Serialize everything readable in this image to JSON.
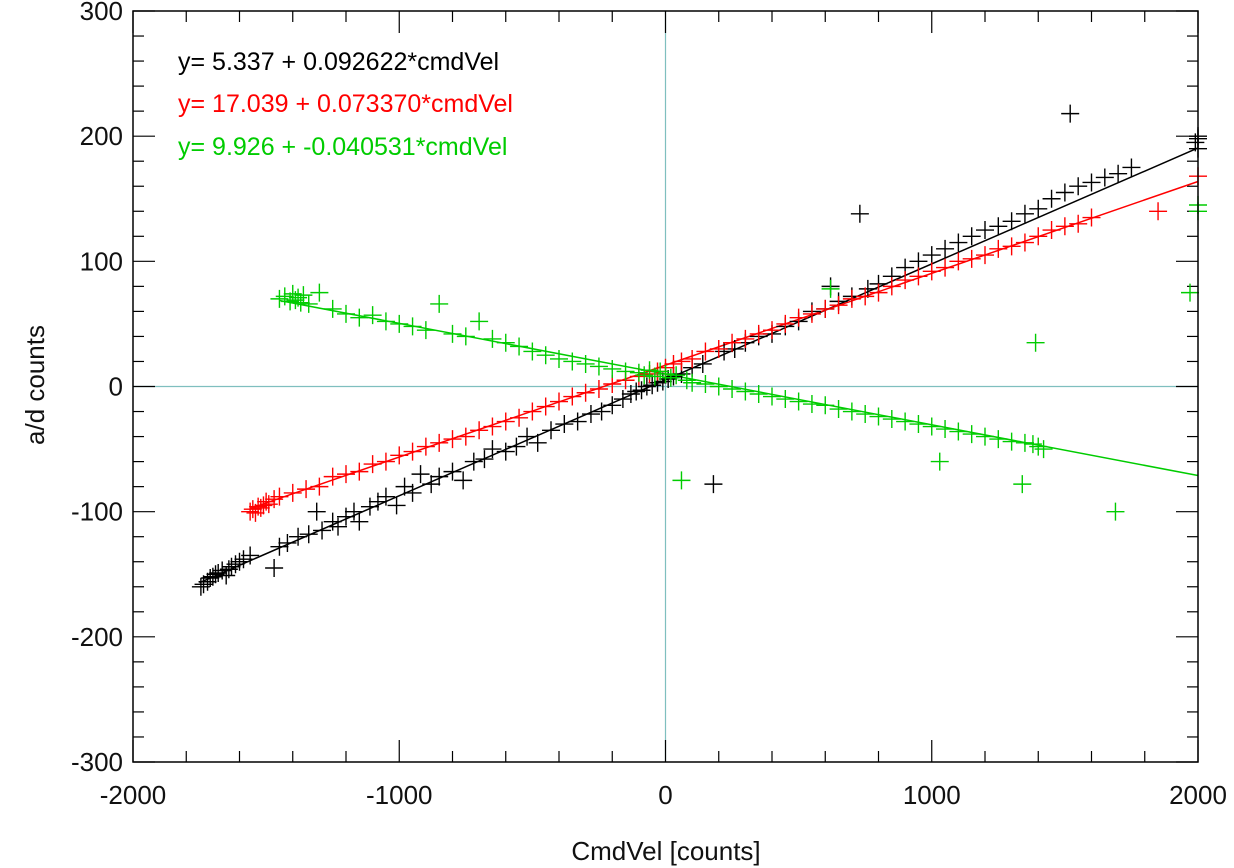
{
  "chart_data": {
    "type": "scatter",
    "title": "",
    "xlabel": "CmdVel [counts]",
    "ylabel": "a/d counts",
    "xlim": [
      -2000,
      2000
    ],
    "ylim": [
      -300,
      300
    ],
    "grid": false,
    "reference_lines": {
      "x": 0,
      "y": 0,
      "color": "#7fbfbf"
    },
    "x_ticks": [
      -2000,
      -1000,
      0,
      1000,
      2000
    ],
    "y_ticks": [
      -300,
      -200,
      -100,
      0,
      100,
      200,
      300
    ],
    "series": [
      {
        "color": "#000000",
        "equation": "y=  5.337 +  0.092622*cmdVel",
        "intercept": 5.337,
        "slope": 0.092622,
        "fit_range": [
          -1750,
          2000
        ],
        "points": [
          [
            -1745,
            -160
          ],
          [
            -1735,
            -158
          ],
          [
            -1720,
            -156
          ],
          [
            -1710,
            -153
          ],
          [
            -1700,
            -152
          ],
          [
            -1690,
            -150
          ],
          [
            -1680,
            -149
          ],
          [
            -1665,
            -147
          ],
          [
            -1650,
            -151
          ],
          [
            -1640,
            -146
          ],
          [
            -1630,
            -144
          ],
          [
            -1615,
            -142
          ],
          [
            -1600,
            -140
          ],
          [
            -1585,
            -138
          ],
          [
            -1560,
            -135
          ],
          [
            -1470,
            -145
          ],
          [
            -1450,
            -128
          ],
          [
            -1420,
            -125
          ],
          [
            -1380,
            -120
          ],
          [
            -1340,
            -118
          ],
          [
            -1310,
            -100
          ],
          [
            -1290,
            -115
          ],
          [
            -1250,
            -108
          ],
          [
            -1230,
            -112
          ],
          [
            -1200,
            -104
          ],
          [
            -1170,
            -100
          ],
          [
            -1150,
            -108
          ],
          [
            -1110,
            -96
          ],
          [
            -1080,
            -92
          ],
          [
            -1050,
            -88
          ],
          [
            -1010,
            -95
          ],
          [
            -980,
            -80
          ],
          [
            -950,
            -85
          ],
          [
            -920,
            -70
          ],
          [
            -880,
            -78
          ],
          [
            -850,
            -72
          ],
          [
            -800,
            -68
          ],
          [
            -760,
            -75
          ],
          [
            -720,
            -60
          ],
          [
            -680,
            -58
          ],
          [
            -650,
            -50
          ],
          [
            -600,
            -52
          ],
          [
            -560,
            -48
          ],
          [
            -520,
            -40
          ],
          [
            -480,
            -45
          ],
          [
            -430,
            -35
          ],
          [
            -380,
            -30
          ],
          [
            -330,
            -28
          ],
          [
            -280,
            -22
          ],
          [
            -240,
            -20
          ],
          [
            -200,
            -15
          ],
          [
            -160,
            -10
          ],
          [
            -130,
            -6
          ],
          [
            -110,
            -4
          ],
          [
            -90,
            -3
          ],
          [
            -70,
            0
          ],
          [
            -50,
            1
          ],
          [
            -30,
            3
          ],
          [
            -10,
            4
          ],
          [
            10,
            6
          ],
          [
            30,
            8
          ],
          [
            60,
            10
          ],
          [
            100,
            15
          ],
          [
            140,
            18
          ],
          [
            180,
            -78
          ],
          [
            220,
            28
          ],
          [
            260,
            30
          ],
          [
            300,
            35
          ],
          [
            350,
            40
          ],
          [
            400,
            42
          ],
          [
            450,
            48
          ],
          [
            500,
            52
          ],
          [
            550,
            60
          ],
          [
            600,
            62
          ],
          [
            620,
            80
          ],
          [
            650,
            68
          ],
          [
            700,
            72
          ],
          [
            730,
            138
          ],
          [
            760,
            78
          ],
          [
            800,
            82
          ],
          [
            850,
            88
          ],
          [
            900,
            95
          ],
          [
            950,
            100
          ],
          [
            1000,
            105
          ],
          [
            1050,
            110
          ],
          [
            1100,
            115
          ],
          [
            1150,
            120
          ],
          [
            1200,
            125
          ],
          [
            1250,
            128
          ],
          [
            1300,
            132
          ],
          [
            1350,
            138
          ],
          [
            1400,
            142
          ],
          [
            1450,
            150
          ],
          [
            1500,
            155
          ],
          [
            1520,
            218
          ],
          [
            1550,
            160
          ],
          [
            1600,
            163
          ],
          [
            1650,
            167
          ],
          [
            1700,
            170
          ],
          [
            1750,
            175
          ],
          [
            1990,
            195
          ],
          [
            2000,
            190
          ],
          [
            2000,
            200
          ],
          [
            2000,
            198
          ]
        ]
      },
      {
        "color": "#ff0000",
        "equation": "y= 17.039 +  0.073370*cmdVel",
        "intercept": 17.039,
        "slope": 0.07337,
        "fit_range": [
          -1560,
          2000
        ],
        "points": [
          [
            -1560,
            -100
          ],
          [
            -1550,
            -98
          ],
          [
            -1540,
            -101
          ],
          [
            -1530,
            -96
          ],
          [
            -1520,
            -97
          ],
          [
            -1510,
            -95
          ],
          [
            -1500,
            -92
          ],
          [
            -1490,
            -94
          ],
          [
            -1470,
            -90
          ],
          [
            -1450,
            -88
          ],
          [
            -1400,
            -85
          ],
          [
            -1350,
            -82
          ],
          [
            -1300,
            -80
          ],
          [
            -1250,
            -72
          ],
          [
            -1200,
            -70
          ],
          [
            -1150,
            -68
          ],
          [
            -1100,
            -62
          ],
          [
            -1050,
            -60
          ],
          [
            -1000,
            -55
          ],
          [
            -950,
            -52
          ],
          [
            -900,
            -48
          ],
          [
            -850,
            -45
          ],
          [
            -800,
            -42
          ],
          [
            -750,
            -40
          ],
          [
            -700,
            -35
          ],
          [
            -650,
            -32
          ],
          [
            -600,
            -28
          ],
          [
            -550,
            -25
          ],
          [
            -500,
            -20
          ],
          [
            -450,
            -16
          ],
          [
            -400,
            -12
          ],
          [
            -350,
            -8
          ],
          [
            -300,
            -5
          ],
          [
            -250,
            -2
          ],
          [
            -200,
            2
          ],
          [
            -150,
            5
          ],
          [
            -100,
            8
          ],
          [
            -60,
            10
          ],
          [
            -30,
            12
          ],
          [
            0,
            15
          ],
          [
            30,
            18
          ],
          [
            60,
            20
          ],
          [
            100,
            22
          ],
          [
            150,
            28
          ],
          [
            200,
            30
          ],
          [
            250,
            35
          ],
          [
            300,
            38
          ],
          [
            350,
            42
          ],
          [
            400,
            45
          ],
          [
            450,
            50
          ],
          [
            500,
            55
          ],
          [
            550,
            58
          ],
          [
            600,
            62
          ],
          [
            650,
            65
          ],
          [
            700,
            70
          ],
          [
            750,
            72
          ],
          [
            800,
            75
          ],
          [
            850,
            80
          ],
          [
            900,
            85
          ],
          [
            950,
            88
          ],
          [
            1000,
            92
          ],
          [
            1050,
            95
          ],
          [
            1100,
            100
          ],
          [
            1150,
            102
          ],
          [
            1200,
            105
          ],
          [
            1250,
            110
          ],
          [
            1300,
            112
          ],
          [
            1350,
            115
          ],
          [
            1400,
            120
          ],
          [
            1450,
            125
          ],
          [
            1500,
            128
          ],
          [
            1550,
            130
          ],
          [
            1600,
            135
          ],
          [
            1850,
            140
          ],
          [
            2000,
            168
          ]
        ]
      },
      {
        "color": "#00cc00",
        "equation": "y=  9.926 + -0.040531*cmdVel",
        "intercept": 9.926,
        "slope": -0.040531,
        "fit_range": [
          -1450,
          2000
        ],
        "points": [
          [
            -1450,
            70
          ],
          [
            -1430,
            72
          ],
          [
            -1410,
            68
          ],
          [
            -1400,
            74
          ],
          [
            -1390,
            69
          ],
          [
            -1380,
            71
          ],
          [
            -1370,
            67
          ],
          [
            -1360,
            73
          ],
          [
            -1340,
            66
          ],
          [
            -1300,
            75
          ],
          [
            -1250,
            62
          ],
          [
            -1200,
            58
          ],
          [
            -1150,
            55
          ],
          [
            -1100,
            57
          ],
          [
            -1050,
            52
          ],
          [
            -1000,
            50
          ],
          [
            -950,
            48
          ],
          [
            -900,
            45
          ],
          [
            -850,
            66
          ],
          [
            -800,
            42
          ],
          [
            -750,
            40
          ],
          [
            -700,
            52
          ],
          [
            -650,
            38
          ],
          [
            -600,
            35
          ],
          [
            -550,
            32
          ],
          [
            -500,
            28
          ],
          [
            -450,
            25
          ],
          [
            -400,
            22
          ],
          [
            -350,
            20
          ],
          [
            -300,
            18
          ],
          [
            -250,
            16
          ],
          [
            -200,
            14
          ],
          [
            -150,
            12
          ],
          [
            -100,
            11
          ],
          [
            -80,
            9
          ],
          [
            -60,
            13
          ],
          [
            -40,
            8
          ],
          [
            -20,
            12
          ],
          [
            0,
            10
          ],
          [
            20,
            7
          ],
          [
            40,
            9
          ],
          [
            60,
            -75
          ],
          [
            80,
            5
          ],
          [
            100,
            3
          ],
          [
            150,
            2
          ],
          [
            200,
            0
          ],
          [
            250,
            -2
          ],
          [
            300,
            -4
          ],
          [
            350,
            -6
          ],
          [
            400,
            -8
          ],
          [
            450,
            -10
          ],
          [
            500,
            -12
          ],
          [
            550,
            -14
          ],
          [
            600,
            -15
          ],
          [
            620,
            78
          ],
          [
            650,
            -18
          ],
          [
            700,
            -20
          ],
          [
            750,
            -22
          ],
          [
            800,
            -24
          ],
          [
            850,
            -26
          ],
          [
            900,
            -28
          ],
          [
            950,
            -30
          ],
          [
            1000,
            -32
          ],
          [
            1030,
            -60
          ],
          [
            1050,
            -34
          ],
          [
            1100,
            -36
          ],
          [
            1150,
            -38
          ],
          [
            1200,
            -40
          ],
          [
            1250,
            -42
          ],
          [
            1300,
            -44
          ],
          [
            1340,
            -78
          ],
          [
            1350,
            -45
          ],
          [
            1380,
            -46
          ],
          [
            1390,
            35
          ],
          [
            1400,
            -48
          ],
          [
            1420,
            -50
          ],
          [
            1690,
            -100
          ],
          [
            1970,
            75
          ],
          [
            2000,
            140
          ],
          [
            2000,
            145
          ]
        ]
      }
    ]
  }
}
